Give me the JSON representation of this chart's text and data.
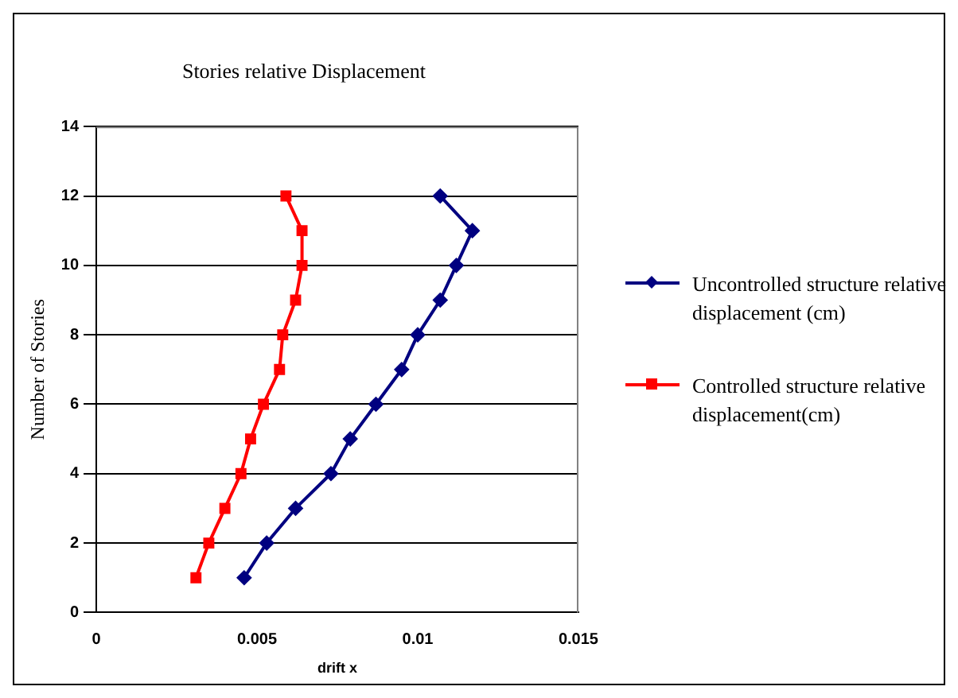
{
  "chart_data": {
    "type": "line",
    "title": "Stories relative Displacement",
    "xlabel": "drift x",
    "ylabel": "Number of Stories",
    "xlim": [
      0,
      0.015
    ],
    "xticks": [
      0,
      0.005,
      0.01,
      0.015
    ],
    "ylim": [
      0,
      14
    ],
    "yticks": [
      0,
      2,
      4,
      6,
      8,
      10,
      12,
      14
    ],
    "grid": "y",
    "legend": "right",
    "line_style": "solid",
    "series": [
      {
        "name": "Uncontrolled structure relative displacement (cm)",
        "color": "#000080",
        "marker": "diamond",
        "x": [
          0.0046,
          0.0053,
          0.0062,
          0.0073,
          0.0079,
          0.0087,
          0.0095,
          0.01,
          0.0107,
          0.0112,
          0.0117,
          0.0107
        ],
        "values": [
          1,
          2,
          3,
          4,
          5,
          6,
          7,
          8,
          9,
          10,
          11,
          12
        ]
      },
      {
        "name": "Controlled structure relative displacement(cm)",
        "color": "#ff0000",
        "marker": "square",
        "x": [
          0.0031,
          0.0035,
          0.004,
          0.0045,
          0.0048,
          0.0052,
          0.0057,
          0.0058,
          0.0062,
          0.0064,
          0.0064,
          0.0059
        ],
        "values": [
          1,
          2,
          3,
          4,
          5,
          6,
          7,
          8,
          9,
          10,
          11,
          12
        ]
      }
    ]
  }
}
